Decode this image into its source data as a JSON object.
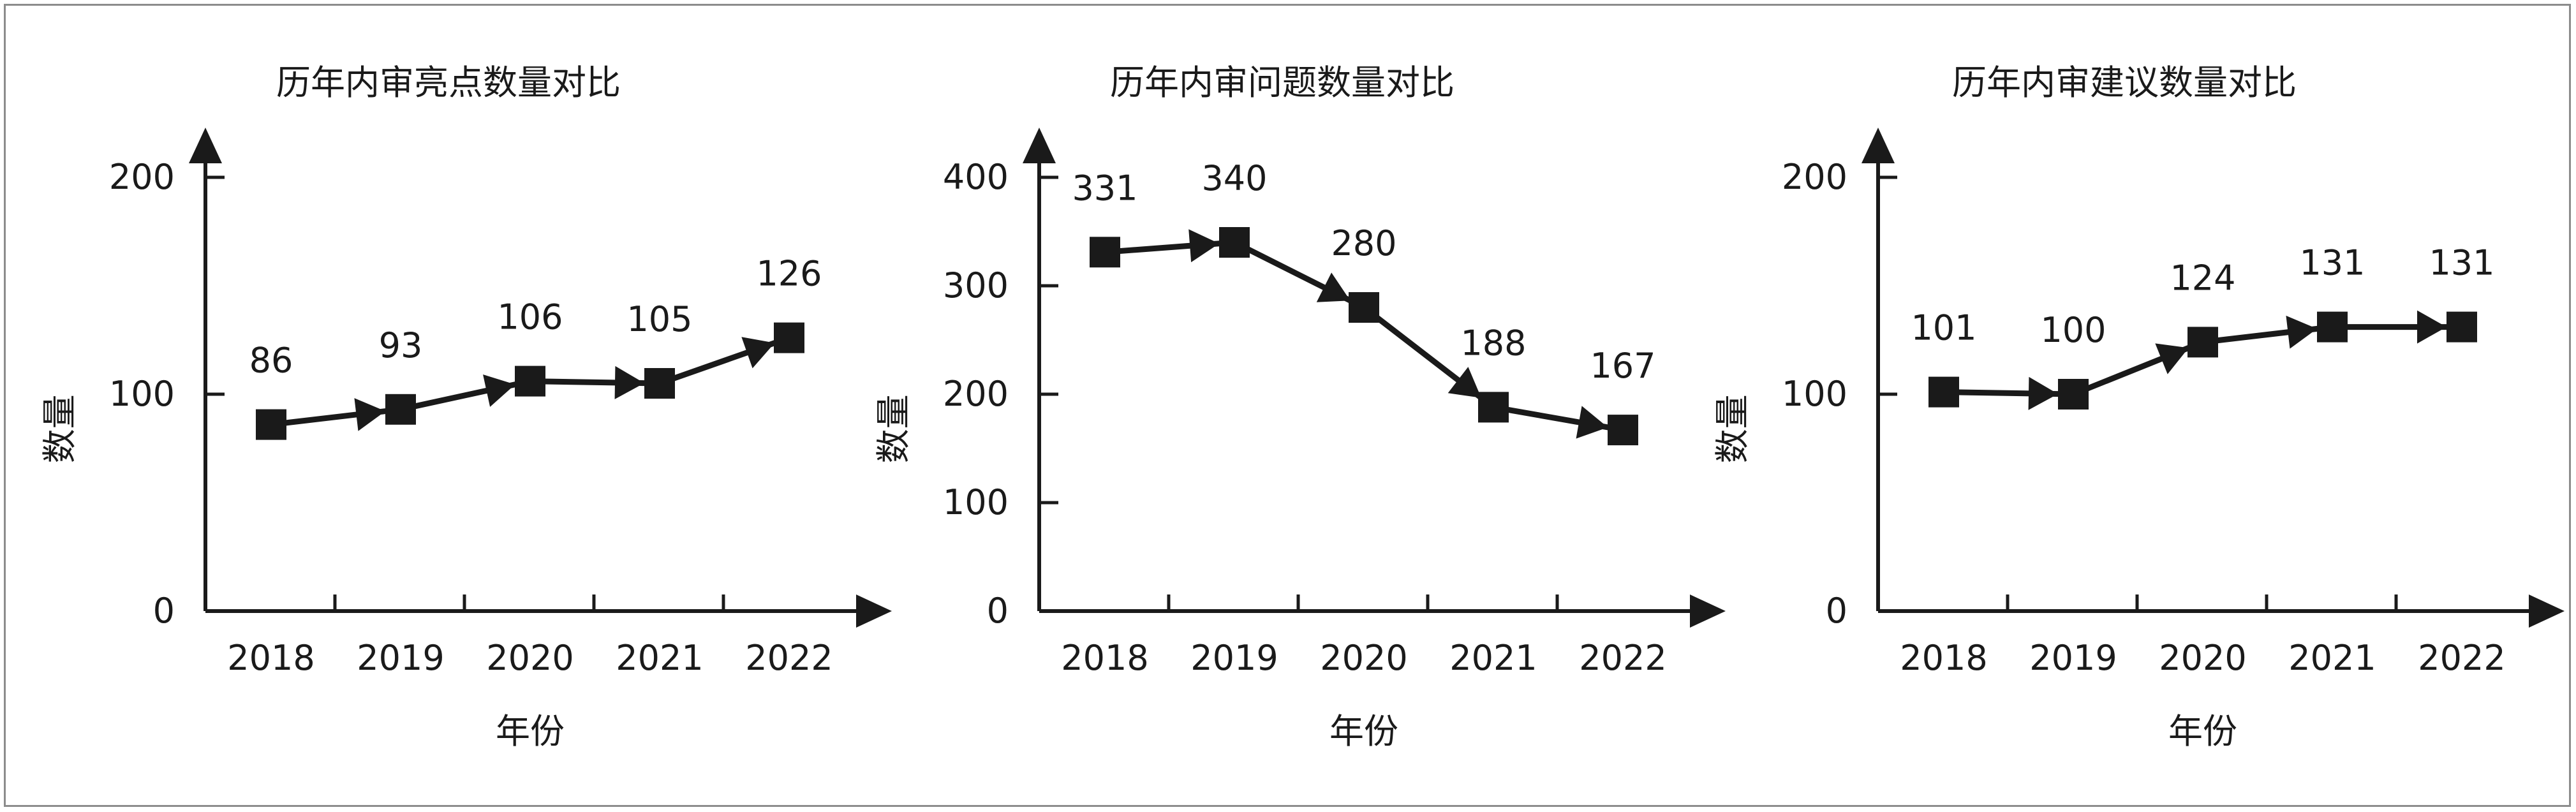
{
  "charts": [
    {
      "title": "历年内审亮点数量对比",
      "ylabel": "数量",
      "xlabel": "年份",
      "yticks": [
        "0",
        "100",
        "200"
      ],
      "chart_ref": 0
    },
    {
      "title": "历年内审问题数量对比",
      "ylabel": "数量",
      "xlabel": "年份",
      "yticks": [
        "0",
        "100",
        "200",
        "300",
        "400"
      ],
      "chart_ref": 1
    },
    {
      "title": "历年内审建议数量对比",
      "ylabel": "数量",
      "xlabel": "年份",
      "yticks": [
        "0",
        "100",
        "200"
      ],
      "chart_ref": 2
    }
  ],
  "chart_data": [
    {
      "type": "line",
      "title": "历年内审亮点数量对比",
      "xlabel": "年份",
      "ylabel": "数量",
      "categories": [
        "2018",
        "2019",
        "2020",
        "2021",
        "2022"
      ],
      "values": [
        86,
        93,
        106,
        105,
        126
      ],
      "ylim": [
        0,
        200
      ],
      "yticks": [
        0,
        100,
        200
      ],
      "marker": "square",
      "line_color": "#1a1a1a"
    },
    {
      "type": "line",
      "title": "历年内审问题数量对比",
      "xlabel": "年份",
      "ylabel": "数量",
      "categories": [
        "2018",
        "2019",
        "2020",
        "2021",
        "2022"
      ],
      "values": [
        331,
        340,
        280,
        188,
        167
      ],
      "ylim": [
        0,
        400
      ],
      "yticks": [
        0,
        100,
        200,
        300,
        400
      ],
      "marker": "square",
      "line_color": "#1a1a1a"
    },
    {
      "type": "line",
      "title": "历年内审建议数量对比",
      "xlabel": "年份",
      "ylabel": "数量",
      "categories": [
        "2018",
        "2019",
        "2020",
        "2021",
        "2022"
      ],
      "values": [
        101,
        100,
        124,
        131,
        131
      ],
      "ylim": [
        0,
        200
      ],
      "yticks": [
        0,
        100,
        200
      ],
      "marker": "square",
      "line_color": "#1a1a1a"
    }
  ]
}
